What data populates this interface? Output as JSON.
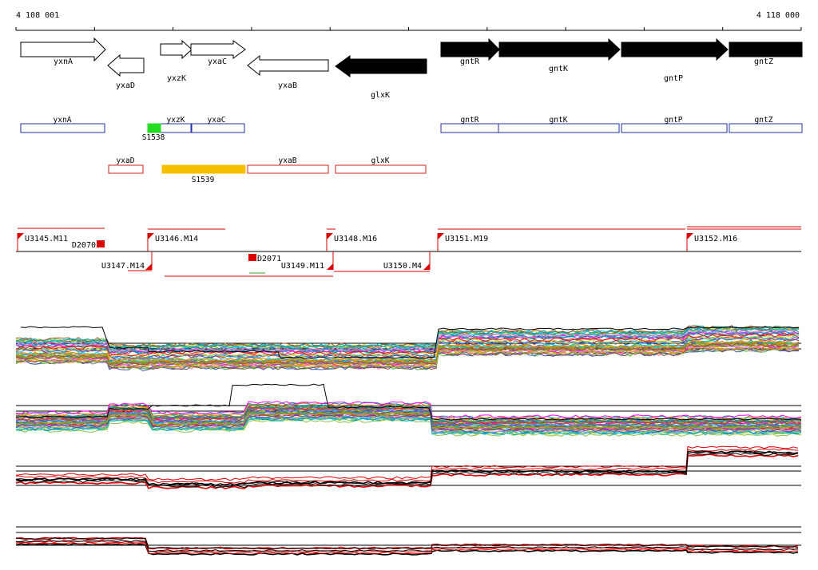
{
  "ruler": {
    "start_label": "4 108 001",
    "end_label": "4 118 000"
  },
  "genes": [
    {
      "name": "yxnA",
      "dir": "right",
      "fill": "white"
    },
    {
      "name": "yxaD",
      "dir": "left",
      "fill": "white"
    },
    {
      "name": "yxzK",
      "dir": "right",
      "fill": "white"
    },
    {
      "name": "yxaC",
      "dir": "right",
      "fill": "white"
    },
    {
      "name": "yxaB",
      "dir": "left",
      "fill": "white"
    },
    {
      "name": "glxK",
      "dir": "left",
      "fill": "black"
    },
    {
      "name": "gntR",
      "dir": "right",
      "fill": "black"
    },
    {
      "name": "gntK",
      "dir": "right",
      "fill": "black"
    },
    {
      "name": "gntP",
      "dir": "right",
      "fill": "black"
    },
    {
      "name": "gntZ",
      "dir": "right",
      "fill": "black"
    }
  ],
  "forward_features": [
    {
      "name": "yxnA",
      "color": "#2233aa"
    },
    {
      "name": "yxzK",
      "color": "#2233aa"
    },
    {
      "name": "yxaC",
      "color": "#2233aa"
    },
    {
      "name": "gntR",
      "color": "#2233aa"
    },
    {
      "name": "gntK",
      "color": "#2233aa"
    },
    {
      "name": "gntP",
      "color": "#2233aa"
    },
    {
      "name": "gntZ",
      "color": "#2233aa"
    }
  ],
  "reverse_features": [
    {
      "name": "yxaD",
      "color": "#cc2222"
    },
    {
      "name": "yxaB",
      "color": "#cc2222"
    },
    {
      "name": "glxK",
      "color": "#cc2222"
    }
  ],
  "small_rnas": [
    {
      "name": "S1538",
      "color": "#22dd22"
    },
    {
      "name": "S1539",
      "color": "#f5c000"
    }
  ],
  "transcription_units_forward": [
    {
      "name": "U3145.M11"
    },
    {
      "name": "U3146.M14"
    },
    {
      "name": "U3148.M16"
    },
    {
      "name": "U3151.M19"
    },
    {
      "name": "U3152.M16"
    }
  ],
  "transcription_units_reverse": [
    {
      "name": "U3147.M14"
    },
    {
      "name": "U3149.M11"
    },
    {
      "name": "U3150.M4"
    }
  ],
  "downregulated_markers": [
    {
      "name": "D2070"
    },
    {
      "name": "D2071"
    }
  ],
  "colors": {
    "arrow_black": "#000000",
    "forward_box": "#2233aa",
    "reverse_box": "#cc2222",
    "tu_line": "#dd0000",
    "expression_highlight": "#dd0000"
  }
}
